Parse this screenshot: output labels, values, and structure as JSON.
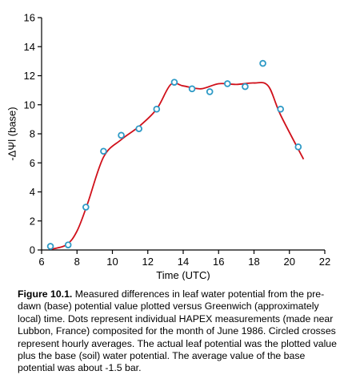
{
  "chart_data": {
    "type": "scatter",
    "xlabel": "Time (UTC)",
    "ylabel": "-ΔΨl (base)",
    "xlim": [
      6,
      22
    ],
    "ylim": [
      0,
      16
    ],
    "x_ticks": [
      6,
      8,
      10,
      12,
      14,
      16,
      18,
      20,
      22
    ],
    "y_ticks": [
      0,
      2,
      4,
      6,
      8,
      10,
      12,
      14,
      16
    ],
    "grid": false,
    "legend": "none",
    "series": [
      {
        "kind": "points",
        "marker": "open-circle",
        "color": "#2e9ac6",
        "x": [
          6.5,
          7.5,
          8.5,
          9.5,
          10.5,
          11.5,
          12.5,
          13.5,
          14.5,
          15.5,
          16.5,
          17.5,
          18.5,
          19.5,
          20.5
        ],
        "y": [
          0.25,
          0.35,
          2.95,
          6.8,
          7.9,
          8.35,
          9.7,
          11.55,
          11.1,
          10.9,
          11.45,
          11.25,
          12.85,
          9.7,
          7.1
        ]
      },
      {
        "kind": "line",
        "smooth": true,
        "color": "#d0101a",
        "x": [
          6.5,
          7.4,
          8.0,
          8.6,
          9.5,
          10.5,
          11.5,
          12.5,
          13.3,
          14.0,
          15.0,
          16.0,
          17.0,
          18.0,
          18.8,
          19.5,
          20.8
        ],
        "y": [
          0.05,
          0.35,
          1.3,
          3.2,
          6.4,
          7.6,
          8.5,
          9.7,
          11.4,
          11.3,
          11.1,
          11.45,
          11.4,
          11.5,
          11.3,
          9.3,
          6.25
        ]
      }
    ]
  },
  "caption": {
    "label": "Figure 10.1.",
    "text": "Measured differences in leaf water potential from the pre-dawn (base) potential value plotted versus Greenwich (approximately local) time. Dots represent individual HAPEX measurements (made near Lubbon, France) composited for the month of June 1986. Circled crosses represent hourly averages. The actual leaf potential was the plotted value plus the base (soil) water potential. The average value of the base potential was about -1.5 bar."
  }
}
